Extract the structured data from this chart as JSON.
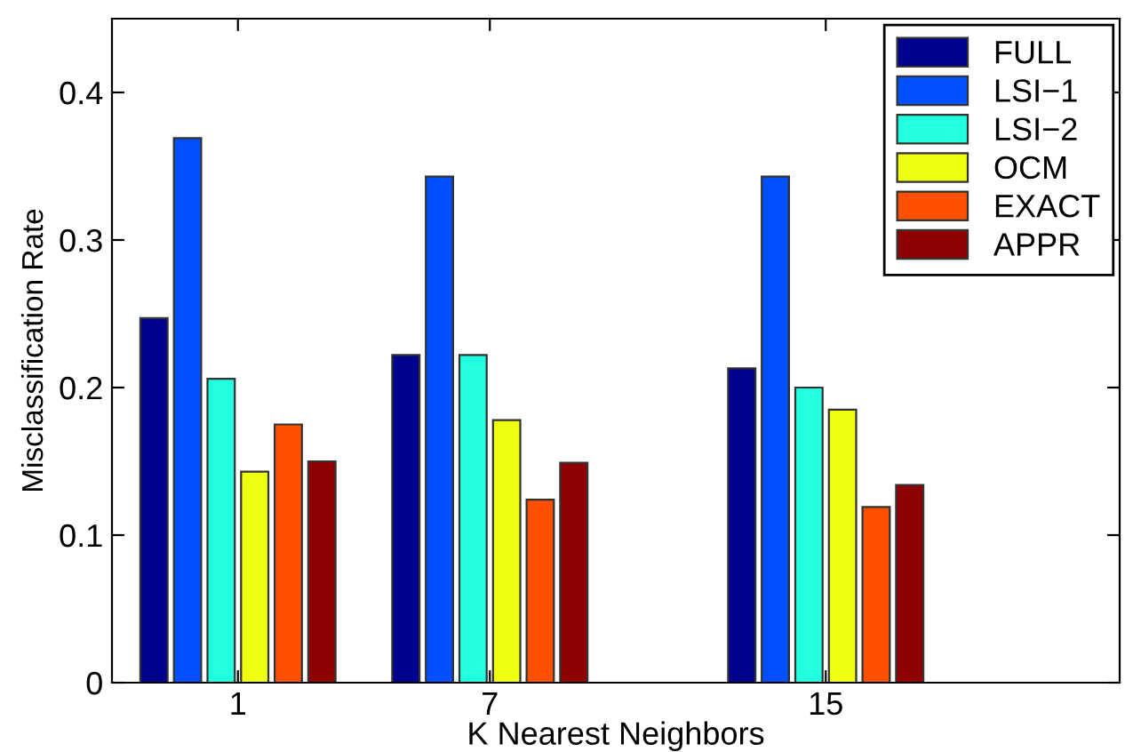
{
  "chart_data": {
    "type": "bar",
    "xlabel": "K Nearest Neighbors",
    "ylabel": "Misclassification Rate",
    "x": [
      1,
      7,
      15
    ],
    "xlim": [
      -2,
      22
    ],
    "xticks": [
      1,
      7,
      15
    ],
    "ylim": [
      0,
      0.45
    ],
    "yticks": [
      0,
      0.1,
      0.2,
      0.3,
      0.4
    ],
    "legend": "top right",
    "grid": false,
    "series": [
      {
        "name": "FULL",
        "color": "#00008f",
        "values": [
          0.247,
          0.222,
          0.213
        ]
      },
      {
        "name": "LSI−1",
        "color": "#0050ff",
        "values": [
          0.369,
          0.343,
          0.343
        ]
      },
      {
        "name": "LSI−2",
        "color": "#20ffdf",
        "values": [
          0.206,
          0.222,
          0.2
        ]
      },
      {
        "name": "OCM",
        "color": "#efff10",
        "values": [
          0.143,
          0.178,
          0.185
        ]
      },
      {
        "name": "EXACT",
        "color": "#ff5000",
        "values": [
          0.175,
          0.124,
          0.119
        ]
      },
      {
        "name": "APPR",
        "color": "#8f0000",
        "values": [
          0.15,
          0.149,
          0.134
        ]
      }
    ]
  }
}
